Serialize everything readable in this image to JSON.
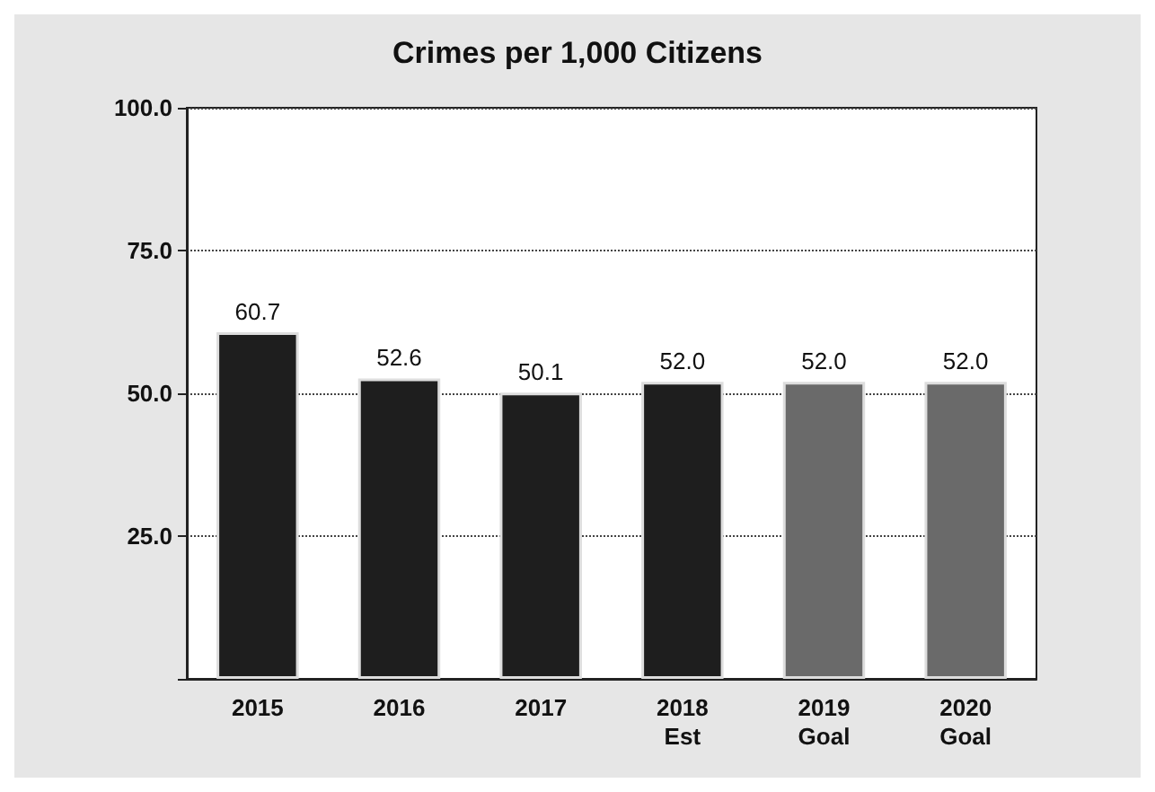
{
  "chart_data": {
    "type": "bar",
    "title": "Crimes per 1,000 Citizens",
    "categories": [
      "2015",
      "2016",
      "2017",
      "2018\nEst",
      "2019\nGoal",
      "2020\nGoal"
    ],
    "values": [
      60.7,
      52.6,
      50.1,
      52.0,
      52.0,
      52.0
    ],
    "colors": [
      "#1e1e1e",
      "#1e1e1e",
      "#1e1e1e",
      "#1e1e1e",
      "#6a6a6a",
      "#6a6a6a"
    ],
    "ylim": [
      0,
      100
    ],
    "yticks": [
      {
        "value": 0,
        "label": null
      },
      {
        "value": 25,
        "label": "25.0"
      },
      {
        "value": 50,
        "label": "50.0"
      },
      {
        "value": 75,
        "label": "75.0"
      },
      {
        "value": 100,
        "label": "100.0"
      }
    ],
    "value_labels": [
      "60.7",
      "52.6",
      "50.1",
      "52.0",
      "52.0",
      "52.0"
    ],
    "grid": "y"
  }
}
